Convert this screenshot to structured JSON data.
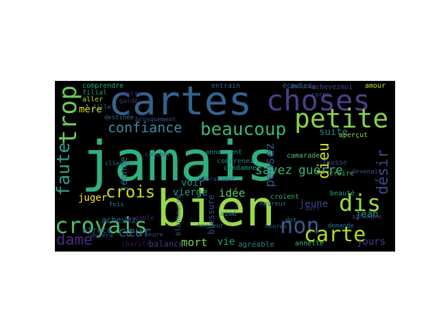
{
  "word_cloud": {
    "background": "#000000",
    "words": [
      {
        "text": "jamais",
        "color": "#2fb07f",
        "rotate": 0
      },
      {
        "text": "bien",
        "color": "#9ad84a",
        "rotate": 0
      },
      {
        "text": "cartes",
        "color": "#33628d",
        "rotate": 0
      },
      {
        "text": "choses",
        "color": "#4e3d87",
        "rotate": 0
      },
      {
        "text": "trop",
        "color": "#6bcd5a",
        "rotate": -90
      },
      {
        "text": "petite",
        "color": "#8ad04a",
        "rotate": 0
      },
      {
        "text": "beaucoup",
        "color": "#38b77b",
        "rotate": 0
      },
      {
        "text": "confiance",
        "color": "#3b8ca3",
        "rotate": 0
      },
      {
        "text": "croyais",
        "color": "#4cc26c",
        "rotate": 0
      },
      {
        "text": "dis",
        "color": "#9fd83c",
        "rotate": 0
      },
      {
        "text": "non",
        "color": "#38598c",
        "rotate": 0
      },
      {
        "text": "carte",
        "color": "#b2dd2c",
        "rotate": 0
      },
      {
        "text": "faute",
        "color": "#2c9f88",
        "rotate": -90
      },
      {
        "text": "crois",
        "color": "#cde11d",
        "rotate": 0
      },
      {
        "text": "dame",
        "color": "#472c7a",
        "rotate": 0
      },
      {
        "text": "cœur",
        "color": "#365d8d",
        "rotate": 0
      },
      {
        "text": "dieu",
        "color": "#d8e219",
        "rotate": -90
      },
      {
        "text": "désir",
        "color": "#3e4a89",
        "rotate": -90
      },
      {
        "text": "pensez",
        "color": "#3b528b",
        "rotate": -90
      },
      {
        "text": "savez",
        "color": "#32b67a",
        "rotate": 0
      },
      {
        "text": "guerre",
        "color": "#34b679",
        "rotate": 0
      },
      {
        "text": "mère",
        "color": "#d2e21b",
        "rotate": 0
      },
      {
        "text": "suite",
        "color": "#2a788e",
        "rotate": 0
      },
      {
        "text": "jeune",
        "color": "#3f4889",
        "rotate": 0
      },
      {
        "text": "jean",
        "color": "#1f9a8a",
        "rotate": 0
      },
      {
        "text": "idée",
        "color": "#5ec962",
        "rotate": 0
      },
      {
        "text": "vierge",
        "color": "#1fa088",
        "rotate": 0
      },
      {
        "text": "mort",
        "color": "#7ad151",
        "rotate": 0
      },
      {
        "text": "vie",
        "color": "#20a386",
        "rotate": 0
      },
      {
        "text": "jours",
        "color": "#3f4788",
        "rotate": 0
      },
      {
        "text": "voir",
        "color": "#21918c",
        "rotate": 0
      },
      {
        "text": "juger",
        "color": "#fde725",
        "rotate": 0
      },
      {
        "text": "jeanne",
        "color": "#2d708e",
        "rotate": -90
      },
      {
        "text": "annette",
        "color": "#3aba76",
        "rotate": 0
      },
      {
        "text": "agréable",
        "color": "#277f8e",
        "rotate": 0
      },
      {
        "text": "dot",
        "color": "#29798e",
        "rotate": 0
      },
      {
        "text": "heures",
        "color": "#365c8d",
        "rotate": 0
      },
      {
        "text": "atroce",
        "color": "#3c508b",
        "rotate": 0
      },
      {
        "text": "achevez",
        "color": "#2e6e8e",
        "rotate": 0
      },
      {
        "text": "balance",
        "color": "#443983",
        "rotate": 0
      },
      {
        "text": "charité",
        "color": "#471063",
        "rotate": 0
      },
      {
        "text": "blessure",
        "color": "#3b528b",
        "rotate": -90
      },
      {
        "text": "blanheurve",
        "color": "#33638d",
        "rotate": -90
      },
      {
        "text": "comprendre",
        "color": "#25ab82",
        "rotate": 0
      },
      {
        "text": "filial",
        "color": "#1f9e89",
        "rotate": 0
      },
      {
        "text": "aller",
        "color": "#b5de2b",
        "rotate": 0
      },
      {
        "text": "entrain",
        "color": "#355f8d",
        "rotate": 0
      },
      {
        "text": "écoutez",
        "color": "#2f6c8e",
        "rotate": 0
      },
      {
        "text": "achevezmoi",
        "color": "#404688",
        "rotate": 0
      },
      {
        "text": "amour",
        "color": "#cae11f",
        "rotate": 0
      },
      {
        "text": "aperçut",
        "color": "#95d840",
        "rotate": 0
      },
      {
        "text": "beauté",
        "color": "#21a685",
        "rotate": 0
      },
      {
        "text": "camarade",
        "color": "#56c667",
        "rotate": 0
      },
      {
        "text": "fausse",
        "color": "#3f4788",
        "rotate": 0
      },
      {
        "text": "aimé",
        "color": "#21918c",
        "rotate": 0
      },
      {
        "text": "annoncent",
        "color": "#20938c",
        "rotate": 0
      },
      {
        "text": "comprenez",
        "color": "#26818e",
        "rotate": 0
      },
      {
        "text": "condamnez",
        "color": "#1f988b",
        "rotate": 0
      },
      {
        "text": "brusquement",
        "color": "#3b518b",
        "rotate": 0
      },
      {
        "text": "destinée",
        "color": "#2a768e",
        "rotate": 0
      },
      {
        "text": "croire",
        "color": "#4ac16d",
        "rotate": 0
      },
      {
        "text": "croient",
        "color": "#2db27d",
        "rotate": 0
      },
      {
        "text": "devenait",
        "color": "#3b528b",
        "rotate": 0
      },
      {
        "text": "attendre",
        "color": "#423f85",
        "rotate": 0
      },
      {
        "text": "demande",
        "color": "#2a788e",
        "rotate": 0
      },
      {
        "text": "coupable",
        "color": "#482475",
        "rotate": 0
      },
      {
        "text": "durera",
        "color": "#38598c",
        "rotate": 0
      },
      {
        "text": "fois",
        "color": "#24868e",
        "rotate": 0
      },
      {
        "text": "clientes",
        "color": "#2c728e",
        "rotate": 0
      },
      {
        "text": "coucher",
        "color": "#3e4a89",
        "rotate": 0
      },
      {
        "text": "fille",
        "color": "#31668e",
        "rotate": 0
      },
      {
        "text": "contre",
        "color": "#482173",
        "rotate": 0
      },
      {
        "text": "gardé",
        "color": "#472d7b",
        "rotate": 0
      },
      {
        "text": "embrassent",
        "color": "#3e4989",
        "rotate": 0
      },
      {
        "text": "heureux",
        "color": "#2f6b8e",
        "rotate": 0
      },
      {
        "text": "corps",
        "color": "#3b528b",
        "rotate": 0
      },
      {
        "text": "délurée",
        "color": "#3f4889",
        "rotate": 0
      },
      {
        "text": "horreur",
        "color": "#2c728e",
        "rotate": 0
      },
      {
        "text": "dort",
        "color": "#46337f",
        "rotate": 0
      },
      {
        "text": "heure",
        "color": "#3e4c8a",
        "rotate": 0
      }
    ]
  }
}
